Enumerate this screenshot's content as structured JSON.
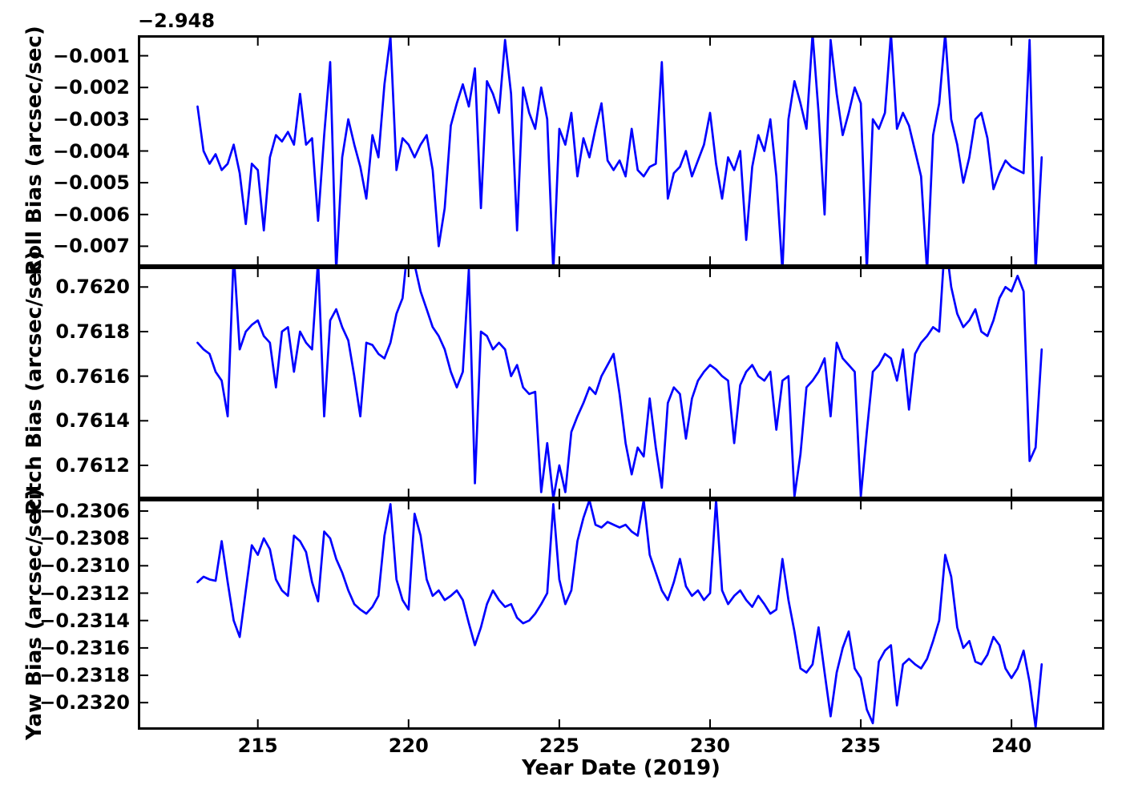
{
  "figure": {
    "background": "#ffffff",
    "axis_color": "#000000",
    "xlabel": "Year Date (2019)",
    "xlim": [
      211.1,
      243.0
    ],
    "xticks": [
      {
        "v": 215,
        "label": "215"
      },
      {
        "v": 220,
        "label": "220"
      },
      {
        "v": 225,
        "label": "225"
      },
      {
        "v": 230,
        "label": "230"
      },
      {
        "v": 235,
        "label": "235"
      },
      {
        "v": 240,
        "label": "240"
      }
    ],
    "x_days": [
      213.0,
      213.2,
      213.4,
      213.6,
      213.8,
      214.0,
      214.2,
      214.4,
      214.6,
      214.8,
      215.0,
      215.2,
      215.4,
      215.6,
      215.8,
      216.0,
      216.2,
      216.4,
      216.6,
      216.8,
      217.0,
      217.2,
      217.4,
      217.6,
      217.8,
      218.0,
      218.2,
      218.4,
      218.6,
      218.8,
      219.0,
      219.2,
      219.4,
      219.6,
      219.8,
      220.0,
      220.2,
      220.4,
      220.6,
      220.8,
      221.0,
      221.2,
      221.4,
      221.6,
      221.8,
      222.0,
      222.2,
      222.4,
      222.6,
      222.8,
      223.0,
      223.2,
      223.4,
      223.6,
      223.8,
      224.0,
      224.2,
      224.4,
      224.6,
      224.8,
      225.0,
      225.2,
      225.4,
      225.6,
      225.8,
      226.0,
      226.2,
      226.4,
      226.6,
      226.8,
      227.0,
      227.2,
      227.4,
      227.6,
      227.8,
      228.0,
      228.2,
      228.4,
      228.6,
      228.8,
      229.0,
      229.2,
      229.4,
      229.6,
      229.8,
      230.0,
      230.2,
      230.4,
      230.6,
      230.8,
      231.0,
      231.2,
      231.4,
      231.6,
      231.8,
      232.0,
      232.2,
      232.4,
      232.6,
      232.8,
      233.0,
      233.2,
      233.4,
      233.6,
      233.8,
      234.0,
      234.2,
      234.4,
      234.6,
      234.8,
      235.0,
      235.2,
      235.4,
      235.6,
      235.8,
      236.0,
      236.2,
      236.4,
      236.6,
      236.8,
      237.0,
      237.2,
      237.4,
      237.6,
      237.8,
      238.0,
      238.2,
      238.4,
      238.6,
      238.8,
      239.0,
      239.2,
      239.4,
      239.6,
      239.8,
      240.0,
      240.2,
      240.4,
      240.6,
      240.8,
      241.0
    ]
  },
  "chart_data": [
    {
      "type": "line",
      "series_name": "roll-bias",
      "ylabel": "Roll Bias (arcsec/sec)",
      "offset_text": "−2.948",
      "line_color": "#0000ff",
      "ylim": [
        -0.00757,
        -0.00043
      ],
      "yticks": [
        {
          "v": -0.001,
          "label": "−0.001"
        },
        {
          "v": -0.002,
          "label": "−0.002"
        },
        {
          "v": -0.003,
          "label": "−0.003"
        },
        {
          "v": -0.004,
          "label": "−0.004"
        },
        {
          "v": -0.005,
          "label": "−0.005"
        },
        {
          "v": -0.006,
          "label": "−0.006"
        },
        {
          "v": -0.007,
          "label": "−0.007"
        }
      ],
      "y": [
        -0.0026,
        -0.004,
        -0.0044,
        -0.0041,
        -0.0046,
        -0.0044,
        -0.0038,
        -0.0047,
        -0.0063,
        -0.0044,
        -0.0046,
        -0.0065,
        -0.0042,
        -0.0035,
        -0.0037,
        -0.0034,
        -0.0038,
        -0.0022,
        -0.0038,
        -0.0036,
        -0.0062,
        -0.0035,
        -0.0012,
        -0.0078,
        -0.0042,
        -0.003,
        -0.0038,
        -0.0045,
        -0.0055,
        -0.0035,
        -0.0042,
        -0.0019,
        -0.0004,
        -0.0046,
        -0.0036,
        -0.0038,
        -0.0042,
        -0.0038,
        -0.0035,
        -0.0046,
        -0.007,
        -0.0058,
        -0.0032,
        -0.0025,
        -0.0019,
        -0.0026,
        -0.0014,
        -0.0058,
        -0.0018,
        -0.0022,
        -0.0028,
        -0.0005,
        -0.0022,
        -0.0065,
        -0.002,
        -0.0028,
        -0.0033,
        -0.002,
        -0.003,
        -0.0078,
        -0.0033,
        -0.0038,
        -0.0028,
        -0.0048,
        -0.0036,
        -0.0042,
        -0.0033,
        -0.0025,
        -0.0043,
        -0.0046,
        -0.0043,
        -0.0048,
        -0.0033,
        -0.0046,
        -0.0048,
        -0.0045,
        -0.0044,
        -0.0012,
        -0.0055,
        -0.0047,
        -0.0045,
        -0.004,
        -0.0048,
        -0.0043,
        -0.0038,
        -0.0028,
        -0.0044,
        -0.0055,
        -0.0042,
        -0.0046,
        -0.004,
        -0.0068,
        -0.0045,
        -0.0035,
        -0.004,
        -0.003,
        -0.0048,
        -0.0078,
        -0.003,
        -0.0018,
        -0.0025,
        -0.0033,
        -0.0003,
        -0.0028,
        -0.006,
        -0.0005,
        -0.0022,
        -0.0035,
        -0.0028,
        -0.002,
        -0.0025,
        -0.0078,
        -0.003,
        -0.0033,
        -0.0028,
        -0.0003,
        -0.0033,
        -0.0028,
        -0.0032,
        -0.004,
        -0.0048,
        -0.0078,
        -0.0035,
        -0.0025,
        -0.0003,
        -0.003,
        -0.0038,
        -0.005,
        -0.0042,
        -0.003,
        -0.0028,
        -0.0036,
        -0.0052,
        -0.0047,
        -0.0043,
        -0.0045,
        -0.0046,
        -0.0047,
        -0.0005,
        -0.0078,
        -0.0042
      ]
    },
    {
      "type": "line",
      "series_name": "pitch-bias",
      "ylabel": "Pitch Bias (arcsec/sec)",
      "line_color": "#0000ff",
      "ylim": [
        0.76106,
        0.76208
      ],
      "yticks": [
        {
          "v": 0.762,
          "label": "0.7620"
        },
        {
          "v": 0.7618,
          "label": "0.7618"
        },
        {
          "v": 0.7616,
          "label": "0.7616"
        },
        {
          "v": 0.7614,
          "label": "0.7614"
        },
        {
          "v": 0.7612,
          "label": "0.7612"
        }
      ],
      "y": [
        0.76175,
        0.76172,
        0.7617,
        0.76162,
        0.76158,
        0.76142,
        0.76215,
        0.76172,
        0.7618,
        0.76183,
        0.76185,
        0.76178,
        0.76175,
        0.76155,
        0.7618,
        0.76182,
        0.76162,
        0.7618,
        0.76175,
        0.76172,
        0.76212,
        0.76142,
        0.76185,
        0.7619,
        0.76182,
        0.76176,
        0.7616,
        0.76142,
        0.76175,
        0.76174,
        0.7617,
        0.76168,
        0.76175,
        0.76188,
        0.76195,
        0.76222,
        0.7621,
        0.76198,
        0.7619,
        0.76182,
        0.76178,
        0.76172,
        0.76162,
        0.76155,
        0.76162,
        0.76208,
        0.76112,
        0.7618,
        0.76178,
        0.76172,
        0.76175,
        0.76172,
        0.7616,
        0.76165,
        0.76155,
        0.76152,
        0.76153,
        0.76108,
        0.7613,
        0.76105,
        0.7612,
        0.76108,
        0.76135,
        0.76142,
        0.76148,
        0.76155,
        0.76152,
        0.7616,
        0.76165,
        0.7617,
        0.76152,
        0.7613,
        0.76116,
        0.76128,
        0.76124,
        0.7615,
        0.76128,
        0.7611,
        0.76148,
        0.76155,
        0.76152,
        0.76132,
        0.7615,
        0.76158,
        0.76162,
        0.76165,
        0.76163,
        0.7616,
        0.76158,
        0.7613,
        0.76156,
        0.76162,
        0.76165,
        0.7616,
        0.76158,
        0.76162,
        0.76136,
        0.76158,
        0.7616,
        0.76106,
        0.76125,
        0.76155,
        0.76158,
        0.76162,
        0.76168,
        0.76142,
        0.76175,
        0.76168,
        0.76165,
        0.76162,
        0.76106,
        0.76135,
        0.76162,
        0.76165,
        0.7617,
        0.76168,
        0.76158,
        0.76172,
        0.76145,
        0.7617,
        0.76175,
        0.76178,
        0.76182,
        0.7618,
        0.76222,
        0.762,
        0.76188,
        0.76182,
        0.76185,
        0.7619,
        0.7618,
        0.76178,
        0.76185,
        0.76195,
        0.762,
        0.76198,
        0.76205,
        0.76198,
        0.76122,
        0.76128,
        0.76172
      ]
    },
    {
      "type": "line",
      "series_name": "yaw-bias",
      "ylabel": "Yaw Bias (arcsec/sec)",
      "line_color": "#0000ff",
      "ylim": [
        -0.23218,
        -0.23053
      ],
      "yticks": [
        {
          "v": -0.2306,
          "label": "−0.2306"
        },
        {
          "v": -0.2308,
          "label": "−0.2308"
        },
        {
          "v": -0.231,
          "label": "−0.2310"
        },
        {
          "v": -0.2312,
          "label": "−0.2312"
        },
        {
          "v": -0.2314,
          "label": "−0.2314"
        },
        {
          "v": -0.2316,
          "label": "−0.2316"
        },
        {
          "v": -0.2318,
          "label": "−0.2318"
        },
        {
          "v": -0.232,
          "label": "−0.2320"
        }
      ],
      "y": [
        -0.23112,
        -0.23108,
        -0.2311,
        -0.23111,
        -0.23082,
        -0.23112,
        -0.2314,
        -0.23152,
        -0.23118,
        -0.23085,
        -0.23092,
        -0.2308,
        -0.23088,
        -0.2311,
        -0.23118,
        -0.23122,
        -0.23078,
        -0.23082,
        -0.2309,
        -0.23112,
        -0.23126,
        -0.23075,
        -0.2308,
        -0.23095,
        -0.23105,
        -0.23118,
        -0.23128,
        -0.23132,
        -0.23135,
        -0.2313,
        -0.23122,
        -0.23078,
        -0.23055,
        -0.2311,
        -0.23125,
        -0.23132,
        -0.23062,
        -0.23078,
        -0.2311,
        -0.23122,
        -0.23118,
        -0.23125,
        -0.23122,
        -0.23118,
        -0.23125,
        -0.23142,
        -0.23158,
        -0.23145,
        -0.23128,
        -0.23118,
        -0.23125,
        -0.2313,
        -0.23128,
        -0.23138,
        -0.23142,
        -0.2314,
        -0.23135,
        -0.23128,
        -0.2312,
        -0.23055,
        -0.2311,
        -0.23128,
        -0.23118,
        -0.23082,
        -0.23065,
        -0.23052,
        -0.2307,
        -0.23072,
        -0.23068,
        -0.2307,
        -0.23072,
        -0.2307,
        -0.23075,
        -0.23078,
        -0.23052,
        -0.23092,
        -0.23105,
        -0.23118,
        -0.23125,
        -0.23112,
        -0.23095,
        -0.23115,
        -0.23122,
        -0.23118,
        -0.23125,
        -0.2312,
        -0.23052,
        -0.23118,
        -0.23128,
        -0.23122,
        -0.23118,
        -0.23125,
        -0.2313,
        -0.23122,
        -0.23128,
        -0.23135,
        -0.23132,
        -0.23095,
        -0.23125,
        -0.23148,
        -0.23175,
        -0.23178,
        -0.23172,
        -0.23145,
        -0.23178,
        -0.2321,
        -0.23178,
        -0.2316,
        -0.23148,
        -0.23175,
        -0.23182,
        -0.23205,
        -0.23215,
        -0.2317,
        -0.23162,
        -0.23158,
        -0.23202,
        -0.23172,
        -0.23168,
        -0.23172,
        -0.23175,
        -0.23168,
        -0.23155,
        -0.2314,
        -0.23092,
        -0.23108,
        -0.23145,
        -0.2316,
        -0.23155,
        -0.2317,
        -0.23172,
        -0.23165,
        -0.23152,
        -0.23158,
        -0.23175,
        -0.23182,
        -0.23175,
        -0.23162,
        -0.23185,
        -0.23218,
        -0.23172
      ]
    }
  ]
}
